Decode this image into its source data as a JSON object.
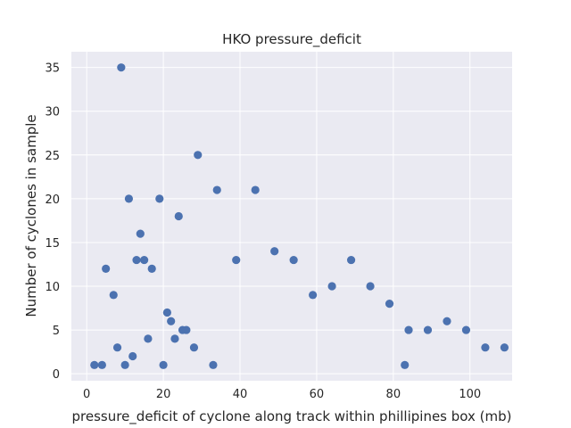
{
  "chart_data": {
    "type": "scatter",
    "title": "HKO pressure_deficit",
    "xlabel": "pressure_deficit of cyclone along track within phillipines box (mb)",
    "ylabel": "Number of cyclones in sample",
    "xlim": [
      -4,
      111
    ],
    "ylim": [
      -0.8,
      36.8
    ],
    "xticks": [
      0,
      20,
      40,
      60,
      80,
      100
    ],
    "yticks": [
      0,
      5,
      10,
      15,
      20,
      25,
      30,
      35
    ],
    "grid": true,
    "background": "#eaeaf2",
    "marker_color": "#4c72b0",
    "points": [
      {
        "x": 2,
        "y": 1
      },
      {
        "x": 4,
        "y": 1
      },
      {
        "x": 5,
        "y": 12
      },
      {
        "x": 7,
        "y": 9
      },
      {
        "x": 8,
        "y": 3
      },
      {
        "x": 9,
        "y": 35
      },
      {
        "x": 10,
        "y": 1
      },
      {
        "x": 11,
        "y": 20
      },
      {
        "x": 12,
        "y": 2
      },
      {
        "x": 13,
        "y": 13
      },
      {
        "x": 14,
        "y": 16
      },
      {
        "x": 15,
        "y": 13
      },
      {
        "x": 16,
        "y": 4
      },
      {
        "x": 17,
        "y": 12
      },
      {
        "x": 19,
        "y": 20
      },
      {
        "x": 20,
        "y": 1
      },
      {
        "x": 21,
        "y": 7
      },
      {
        "x": 22,
        "y": 6
      },
      {
        "x": 23,
        "y": 4
      },
      {
        "x": 24,
        "y": 18
      },
      {
        "x": 25,
        "y": 5
      },
      {
        "x": 26,
        "y": 5
      },
      {
        "x": 28,
        "y": 3
      },
      {
        "x": 29,
        "y": 25
      },
      {
        "x": 33,
        "y": 1
      },
      {
        "x": 34,
        "y": 21
      },
      {
        "x": 39,
        "y": 13
      },
      {
        "x": 44,
        "y": 21
      },
      {
        "x": 49,
        "y": 14
      },
      {
        "x": 54,
        "y": 13
      },
      {
        "x": 59,
        "y": 9
      },
      {
        "x": 64,
        "y": 10
      },
      {
        "x": 69,
        "y": 13
      },
      {
        "x": 74,
        "y": 10
      },
      {
        "x": 79,
        "y": 8
      },
      {
        "x": 83,
        "y": 1
      },
      {
        "x": 84,
        "y": 5
      },
      {
        "x": 89,
        "y": 5
      },
      {
        "x": 94,
        "y": 6
      },
      {
        "x": 99,
        "y": 5
      },
      {
        "x": 104,
        "y": 3
      },
      {
        "x": 109,
        "y": 3
      }
    ]
  }
}
